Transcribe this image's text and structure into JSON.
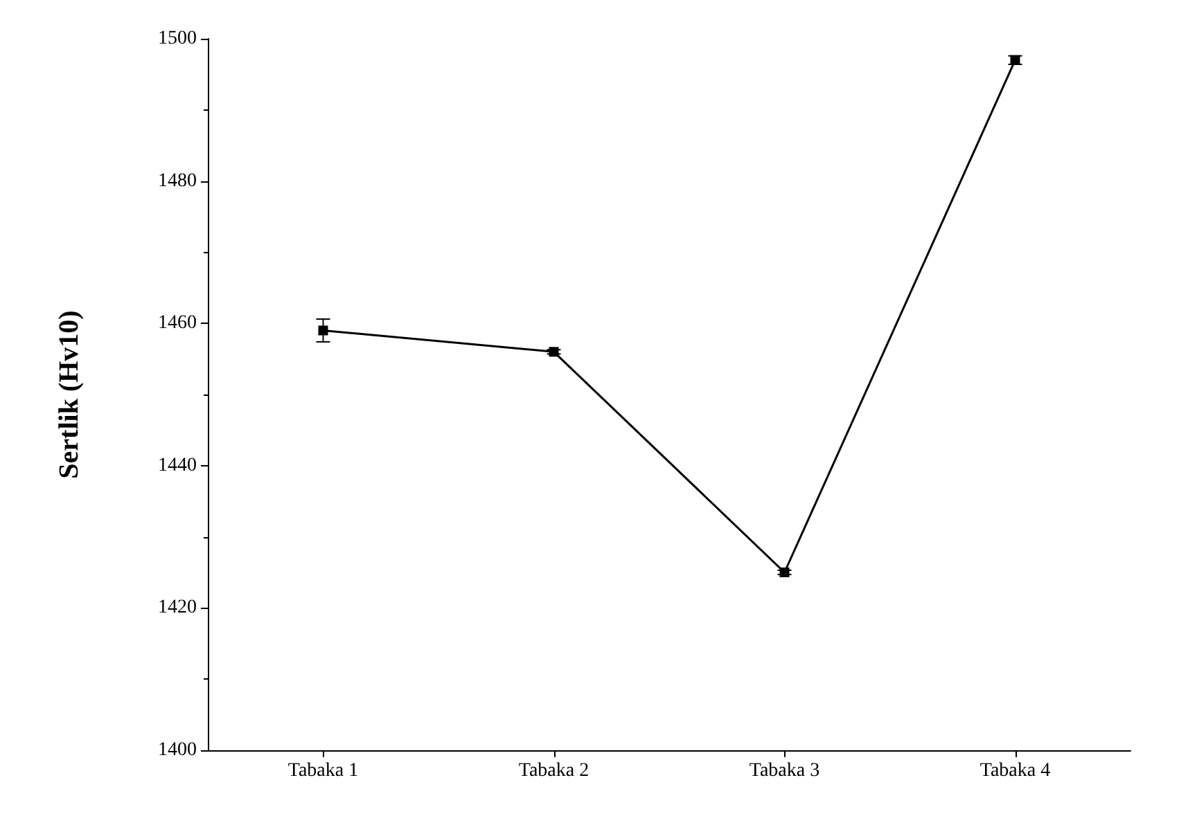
{
  "chart_data": {
    "type": "line",
    "ylabel": "Sertlik (Hv10)",
    "categories": [
      "Tabaka 1",
      "Tabaka 2",
      "Tabaka 3",
      "Tabaka 4"
    ],
    "series": [
      {
        "color": "#000000",
        "values": [
          1459,
          1456,
          1425,
          1497
        ],
        "errors": [
          1.6,
          0.3,
          0.3,
          0.6
        ]
      }
    ],
    "ylim": [
      1400,
      1500
    ],
    "yticks": [
      1400,
      1420,
      1440,
      1460,
      1480,
      1500
    ],
    "grid": false,
    "marker": "square",
    "line_style": "solid"
  }
}
